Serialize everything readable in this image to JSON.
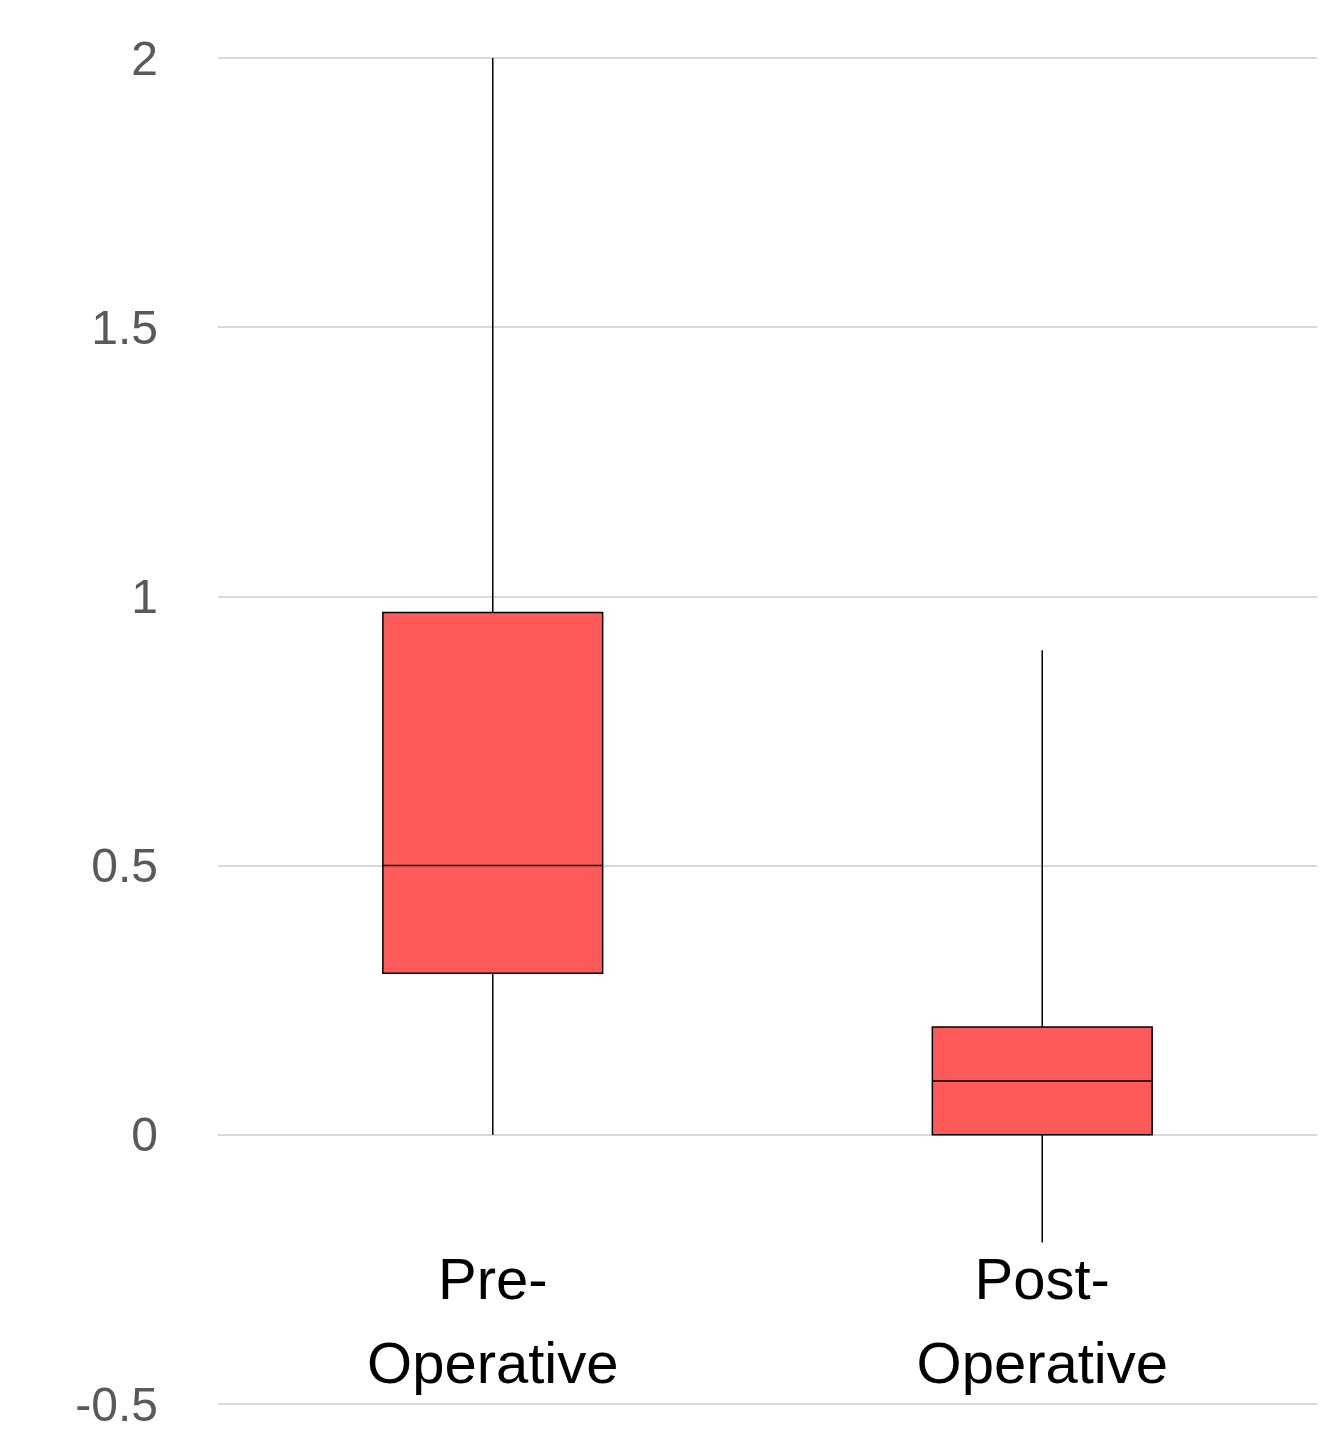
{
  "chart_data": {
    "type": "box",
    "categories": [
      "Pre-Operative",
      "Post-Operative"
    ],
    "boxes": [
      {
        "low": 0,
        "q1": 0.3,
        "median": 0.5,
        "q3": 0.97,
        "high": 2
      },
      {
        "low": -0.2,
        "q1": 0,
        "median": 0.1,
        "q3": 0.2,
        "high": 0.9
      }
    ],
    "color": "#ff5a5a",
    "ylim": [
      -0.5,
      2
    ],
    "yticks": [
      -0.5,
      0,
      0.5,
      1,
      1.5,
      2
    ],
    "grid": "y"
  }
}
